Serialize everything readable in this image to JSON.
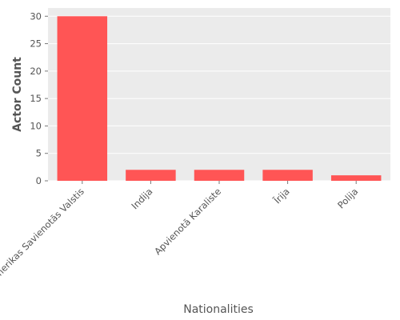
{
  "chart_data": {
    "type": "bar",
    "categories": [
      "Amerikas Savienotās Valstis",
      "Indija",
      "Apvienotā Karaliste",
      "Īrija",
      "Polija"
    ],
    "values": [
      30,
      2,
      2,
      2,
      1
    ],
    "title": "",
    "xlabel": "Nationalities",
    "ylabel": "Actor Count",
    "ylim": [
      0,
      31.5
    ],
    "yticks": [
      0,
      5,
      10,
      15,
      20,
      25,
      30
    ],
    "grid": true,
    "colors": {
      "bar": "#ff5555",
      "background": "#ebebeb",
      "grid": "#ffffff",
      "text": "#555555"
    }
  }
}
